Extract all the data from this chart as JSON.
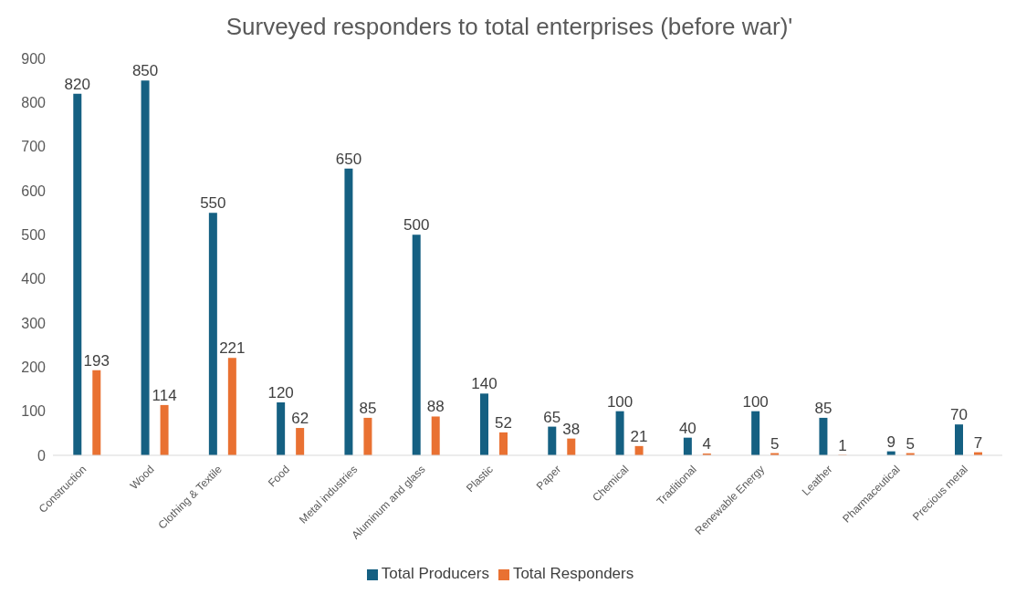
{
  "chart_data": {
    "type": "bar",
    "title": "Surveyed responders to total enterprises (before war)'",
    "categories": [
      "Construction",
      "Wood",
      "Clothing & Textile",
      "Food",
      "Metal industries",
      "Aluminum and glass",
      "Plastic",
      "Paper",
      "Chemical",
      "Traditional",
      "Renewable Energy",
      "Leather",
      "Pharmaceutical",
      "Precious metal"
    ],
    "series": [
      {
        "name": "Total Producers",
        "color": "#156082",
        "values": [
          820,
          850,
          550,
          120,
          650,
          500,
          140,
          65,
          100,
          40,
          100,
          85,
          9,
          70
        ]
      },
      {
        "name": "Total Responders",
        "color": "#e97132",
        "values": [
          193,
          114,
          221,
          62,
          85,
          88,
          52,
          38,
          21,
          4,
          5,
          1,
          5,
          7
        ]
      }
    ],
    "ylim": [
      0,
      900
    ],
    "yticks": [
      0,
      100,
      200,
      300,
      400,
      500,
      600,
      700,
      800,
      900
    ],
    "grid": false,
    "legend": "bottom",
    "data_labels": true
  }
}
